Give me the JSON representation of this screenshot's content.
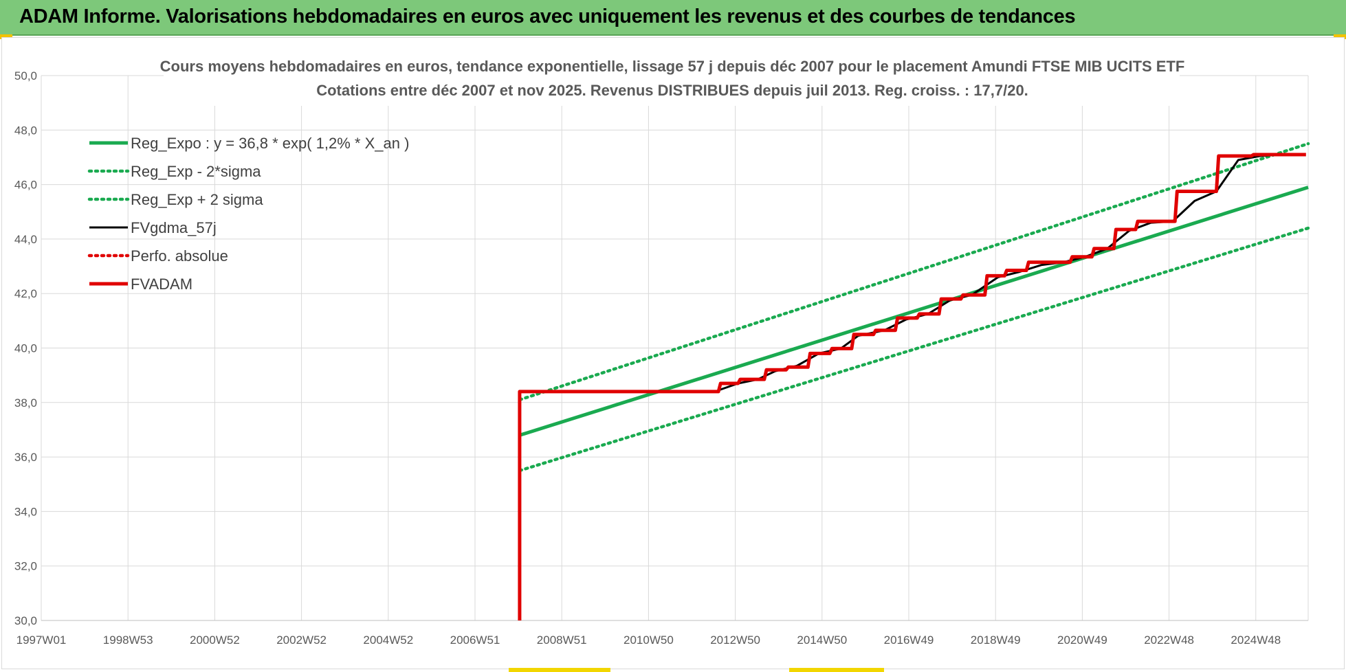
{
  "banner": {
    "title": "ADAM Informe. Valorisations hebdomadaires en euros avec uniquement les revenus et des courbes de tendances"
  },
  "colors": {
    "banner_bg": "#7dc87a",
    "reg_green": "#1aaa50",
    "red": "#e00000",
    "black": "#000000"
  },
  "chart_data": {
    "type": "line",
    "title": [
      "Cours moyens hebdomadaires en euros, tendance exponentielle, lissage 57 j depuis déc 2007 pour le placement Amundi FTSE MIB  UCITS ETF",
      "Cotations entre déc 2007 et nov 2025.  Revenus DISTRIBUES depuis juil 2013.  Reg. croiss. : 17,7/20."
    ],
    "x_tick_labels": [
      "1997W01",
      "1998W53",
      "2000W52",
      "2002W52",
      "2004W52",
      "2006W51",
      "2008W51",
      "2010W50",
      "2012W50",
      "2014W50",
      "2016W49",
      "2018W49",
      "2020W49",
      "2022W48",
      "2024W48"
    ],
    "x_range": [
      1997.0,
      2026.0
    ],
    "ylim": [
      30.0,
      50.0
    ],
    "y_tick_labels": [
      "30,0",
      "32,0",
      "34,0",
      "36,0",
      "38,0",
      "40,0",
      "42,0",
      "44,0",
      "46,0",
      "48,0",
      "50,0"
    ],
    "grid": true,
    "legend_position": "top-left",
    "series": [
      {
        "name": "Reg_Expo : y = 36,8 * exp( 1,2% *  X_an )",
        "style": "solid-thick",
        "color": "#1aaa50",
        "x": [
          2007.95,
          2026.0
        ],
        "y": [
          36.8,
          45.9
        ]
      },
      {
        "name": "Reg_Exp - 2*sigma",
        "style": "dotted",
        "color": "#1aaa50",
        "x": [
          2007.95,
          2026.0
        ],
        "y": [
          35.5,
          44.4
        ]
      },
      {
        "name": "Reg_Exp + 2 sigma",
        "style": "dotted",
        "color": "#1aaa50",
        "x": [
          2007.95,
          2026.0
        ],
        "y": [
          38.1,
          47.5
        ]
      },
      {
        "name": "FVgdma_57j",
        "style": "solid",
        "color": "#000000",
        "x": [
          2012.5,
          2012.95,
          2013.4,
          2013.8,
          2014.3,
          2014.8,
          2015.3,
          2015.7,
          2016.3,
          2016.8,
          2017.3,
          2017.8,
          2018.3,
          2018.9,
          2019.4,
          2019.9,
          2020.4,
          2020.9,
          2021.4,
          2021.9,
          2022.4,
          2022.9,
          2023.4,
          2023.9,
          2024.4,
          2024.9,
          2025.4
        ],
        "y": [
          38.45,
          38.7,
          38.85,
          39.15,
          39.35,
          39.8,
          39.98,
          40.45,
          40.65,
          41.05,
          41.25,
          41.75,
          41.95,
          42.6,
          42.8,
          43.05,
          43.15,
          43.35,
          43.65,
          44.3,
          44.6,
          44.65,
          45.4,
          45.75,
          46.9,
          47.05,
          47.1
        ]
      },
      {
        "name": "Perfo. absolue",
        "style": "dotted",
        "color": "#e00000",
        "x": [],
        "y": []
      },
      {
        "name": "FVADAM",
        "style": "solid-thick",
        "color": "#e00000",
        "x": [
          2007.95,
          2007.95,
          2012.5,
          2012.55,
          2012.95,
          2013.0,
          2013.55,
          2013.6,
          2014.05,
          2014.1,
          2014.55,
          2014.6,
          2015.05,
          2015.1,
          2015.55,
          2015.6,
          2016.05,
          2016.1,
          2016.55,
          2016.6,
          2017.05,
          2017.1,
          2017.55,
          2017.6,
          2018.05,
          2018.1,
          2018.6,
          2018.65,
          2019.05,
          2019.1,
          2019.55,
          2019.6,
          2020.55,
          2020.6,
          2021.05,
          2021.1,
          2021.55,
          2021.6,
          2022.05,
          2022.1,
          2022.95,
          2023.0,
          2023.9,
          2023.95,
          2024.7,
          2024.75,
          2025.95
        ],
        "y": [
          30.0,
          38.4,
          38.4,
          38.7,
          38.7,
          38.85,
          38.85,
          39.2,
          39.2,
          39.3,
          39.3,
          39.8,
          39.8,
          39.98,
          39.98,
          40.5,
          40.5,
          40.65,
          40.65,
          41.1,
          41.1,
          41.25,
          41.25,
          41.8,
          41.8,
          41.95,
          41.95,
          42.65,
          42.65,
          42.85,
          42.85,
          43.15,
          43.15,
          43.35,
          43.35,
          43.65,
          43.65,
          44.35,
          44.35,
          44.65,
          44.65,
          45.75,
          45.75,
          47.05,
          47.05,
          47.1,
          47.1
        ]
      }
    ]
  }
}
